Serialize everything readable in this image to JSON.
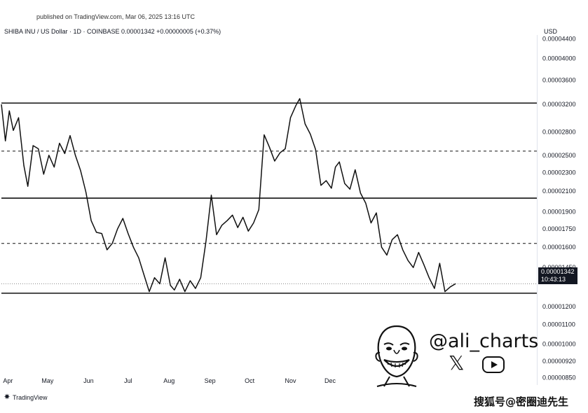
{
  "header": {
    "published": "published on TradingView.com, Mar 06, 2025 13:16 UTC",
    "symbol_line": "SHIBA INU / US Dollar · 1D · COINBASE  0.00001342  +0.00000005 (+0.37%)",
    "currency": "USD"
  },
  "footer": {
    "tradingview_logo": "TradingView",
    "watermark": "搜狐号@密圈迪先生"
  },
  "author": {
    "handle": "@ali_charts",
    "icons": [
      "avatar-caricature",
      "x-icon",
      "youtube-icon"
    ]
  },
  "chart_data": {
    "type": "line",
    "title": "",
    "xlabel": "",
    "ylabel": "",
    "x_tick_labels": [
      "Apr",
      "May",
      "Jun",
      "Jul",
      "Aug",
      "Sep",
      "Oct",
      "Nov",
      "Dec"
    ],
    "y_tick_labels": [
      "0.00004400",
      "0.00004000",
      "0.00003600",
      "0.00003200",
      "0.00002800",
      "0.00002500",
      "0.00002300",
      "0.00002100",
      "0.00001900",
      "0.00001750",
      "0.00001600",
      "0.00001450",
      "0.00001200",
      "0.00001100",
      "0.00001000",
      "0.00000920",
      "0.00000850"
    ],
    "y_tick_values": [
      4.4e-05,
      4e-05,
      3.6e-05,
      3.2e-05,
      2.8e-05,
      2.5e-05,
      2.3e-05,
      2.1e-05,
      1.9e-05,
      1.75e-05,
      1.6e-05,
      1.45e-05,
      1.2e-05,
      1.1e-05,
      1e-05,
      9.2e-06,
      8.5e-06
    ],
    "ylim": [
      8.2e-06,
      4.48e-05
    ],
    "y_scale": "log",
    "last_price": "0.00001342",
    "countdown": "10:43:13",
    "horizontal_levels": [
      {
        "value": 3.22e-05,
        "style": "solid"
      },
      {
        "value": 2.55e-05,
        "style": "dashed"
      },
      {
        "value": 2.03e-05,
        "style": "solid"
      },
      {
        "value": 1.63e-05,
        "style": "dashed"
      },
      {
        "value": 1.34e-05,
        "style": "dotted"
      },
      {
        "value": 1.28e-05,
        "style": "solid"
      }
    ],
    "series": [
      {
        "x": [
          "Mar 27",
          "Mar 30",
          "Apr 02",
          "Apr 05",
          "Apr 09",
          "Apr 13",
          "Apr 16",
          "Apr 20",
          "Apr 24",
          "Apr 28",
          "May 02",
          "May 06",
          "May 10",
          "May 14",
          "May 18",
          "May 22",
          "May 26",
          "May 30",
          "Jun 03",
          "Jun 07",
          "Jun 11",
          "Jun 15",
          "Jun 19",
          "Jun 23",
          "Jun 27",
          "Jul 01",
          "Jul 05",
          "Jul 09",
          "Jul 13",
          "Jul 17",
          "Jul 21",
          "Jul 25",
          "Jul 29",
          "Aug 02",
          "Aug 05",
          "Aug 09",
          "Aug 13",
          "Aug 17",
          "Aug 21",
          "Aug 25",
          "Aug 29",
          "Sep 02",
          "Sep 06",
          "Sep 10",
          "Sep 14",
          "Sep 18",
          "Sep 22",
          "Sep 26",
          "Sep 30",
          "Oct 04",
          "Oct 08",
          "Oct 12",
          "Oct 16",
          "Oct 20",
          "Oct 24",
          "Oct 28",
          "Nov 01",
          "Nov 05",
          "Nov 08",
          "Nov 12",
          "Nov 16",
          "Nov 20",
          "Nov 24",
          "Nov 28",
          "Dec 02",
          "Dec 05",
          "Dec 08",
          "Dec 12",
          "Dec 16",
          "Dec 20",
          "Dec 24",
          "Dec 28",
          "Jan 01",
          "Jan 05",
          "Jan 09",
          "Jan 13",
          "Jan 17",
          "Jan 21",
          "Jan 25",
          "Jan 29",
          "Feb 02",
          "Feb 06",
          "Feb 10",
          "Feb 14",
          "Feb 18",
          "Feb 22",
          "Feb 26",
          "Mar 02",
          "Mar 06"
        ],
        "values": [
          3.2e-05,
          2.68e-05,
          3.1e-05,
          2.82e-05,
          3e-05,
          2.38e-05,
          2.15e-05,
          2.62e-05,
          2.58e-05,
          2.28e-05,
          2.5e-05,
          2.36e-05,
          2.65e-05,
          2.52e-05,
          2.75e-05,
          2.5e-05,
          2.32e-05,
          2.09e-05,
          1.82e-05,
          1.72e-05,
          1.71e-05,
          1.58e-05,
          1.63e-05,
          1.75e-05,
          1.84e-05,
          1.71e-05,
          1.6e-05,
          1.52e-05,
          1.4e-05,
          1.29e-05,
          1.38e-05,
          1.34e-05,
          1.52e-05,
          1.33e-05,
          1.3e-05,
          1.37e-05,
          1.29e-05,
          1.36e-05,
          1.31e-05,
          1.38e-05,
          1.65e-05,
          2.06e-05,
          1.7e-05,
          1.78e-05,
          1.82e-05,
          1.87e-05,
          1.76e-05,
          1.85e-05,
          1.73e-05,
          1.8e-05,
          1.92e-05,
          2.76e-05,
          2.6e-05,
          2.43e-05,
          2.53e-05,
          2.58e-05,
          3e-05,
          3.18e-05,
          3.29e-05,
          2.91e-05,
          2.77e-05,
          2.57e-05,
          2.16e-05,
          2.21e-05,
          2.13e-05,
          2.36e-05,
          2.42e-05,
          2.18e-05,
          2.12e-05,
          2.33e-05,
          2.08e-05,
          1.98e-05,
          1.8e-05,
          1.89e-05,
          1.6e-05,
          1.54e-05,
          1.66e-05,
          1.7e-05,
          1.58e-05,
          1.5e-05,
          1.45e-05,
          1.56e-05,
          1.47e-05,
          1.38e-05,
          1.31e-05,
          1.48e-05,
          1.29e-05,
          1.32e-05,
          1.34e-05
        ]
      }
    ]
  }
}
